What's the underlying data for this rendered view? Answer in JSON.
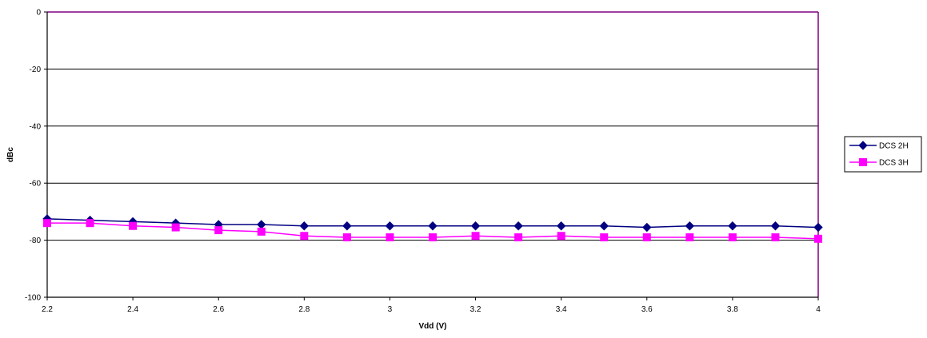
{
  "chart_data": {
    "type": "line",
    "title": "",
    "xlabel": "Vdd (V)",
    "ylabel": "dBc",
    "xlim": [
      2.2,
      4
    ],
    "ylim": [
      -100,
      0
    ],
    "x_ticks": [
      "2.2",
      "2.4",
      "2.6",
      "2.8",
      "3",
      "3.2",
      "3.4",
      "3.6",
      "3.8",
      "4"
    ],
    "y_ticks": [
      "0",
      "-20",
      "-40",
      "-60",
      "-80",
      "-100"
    ],
    "grid": "horizontal",
    "legend_position": "right",
    "x": [
      2.2,
      2.3,
      2.4,
      2.5,
      2.6,
      2.7,
      2.8,
      2.9,
      3.0,
      3.1,
      3.2,
      3.3,
      3.4,
      3.5,
      3.6,
      3.7,
      3.8,
      3.9,
      4.0
    ],
    "series": [
      {
        "name": "DCS 2H",
        "color": "#000080",
        "marker": "diamond",
        "values": [
          -72.5,
          -73,
          -73.5,
          -74,
          -74.5,
          -74.5,
          -75,
          -75,
          -75,
          -75,
          -75,
          -75,
          -75,
          -75,
          -75.5,
          -75,
          -75,
          -75,
          -75.5
        ]
      },
      {
        "name": "DCS 3H",
        "color": "#ff00ff",
        "marker": "square",
        "values": [
          -74,
          -74,
          -75,
          -75.5,
          -76.5,
          -77,
          -78.5,
          -79,
          -79,
          -79,
          -78.5,
          -79,
          -78.5,
          -79,
          -79,
          -79,
          -79,
          -79,
          -79.5
        ]
      }
    ]
  }
}
